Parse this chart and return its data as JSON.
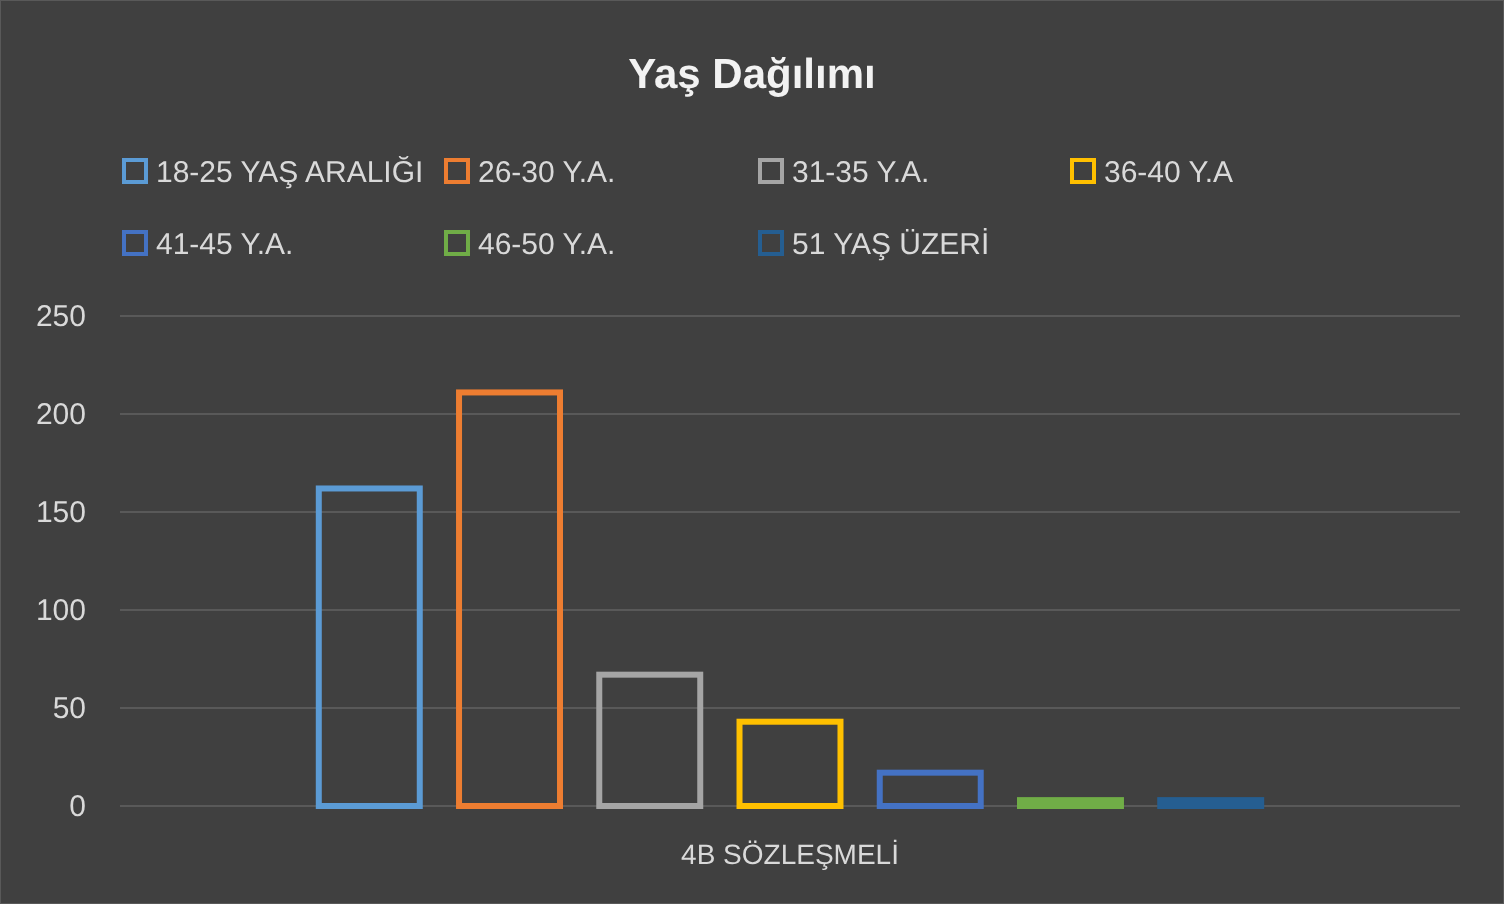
{
  "chart_data": {
    "type": "bar",
    "title": "Yaş Dağılımı",
    "categories": [
      "4B SÖZLEŞMELİ"
    ],
    "ylim": [
      0,
      250
    ],
    "yticks": [
      0,
      50,
      100,
      150,
      200,
      250
    ],
    "grid": "y",
    "legend": "top",
    "series": [
      {
        "name": "18-25 YAŞ ARALIĞI",
        "color": "#5b9bd5",
        "values": [
          162
        ]
      },
      {
        "name": "26-30 Y.A.",
        "color": "#ed7d31",
        "values": [
          211
        ]
      },
      {
        "name": "31-35 Y.A.",
        "color": "#a5a5a5",
        "values": [
          67
        ]
      },
      {
        "name": "36-40 Y.A",
        "color": "#ffc000",
        "values": [
          43
        ]
      },
      {
        "name": "41-45 Y.A.",
        "color": "#4472c4",
        "values": [
          17
        ]
      },
      {
        "name": "46-50 Y.A.",
        "color": "#70ad47",
        "values": [
          3
        ]
      },
      {
        "name": "51 YAŞ ÜZERİ",
        "color": "#255e91",
        "values": [
          3
        ]
      }
    ]
  }
}
